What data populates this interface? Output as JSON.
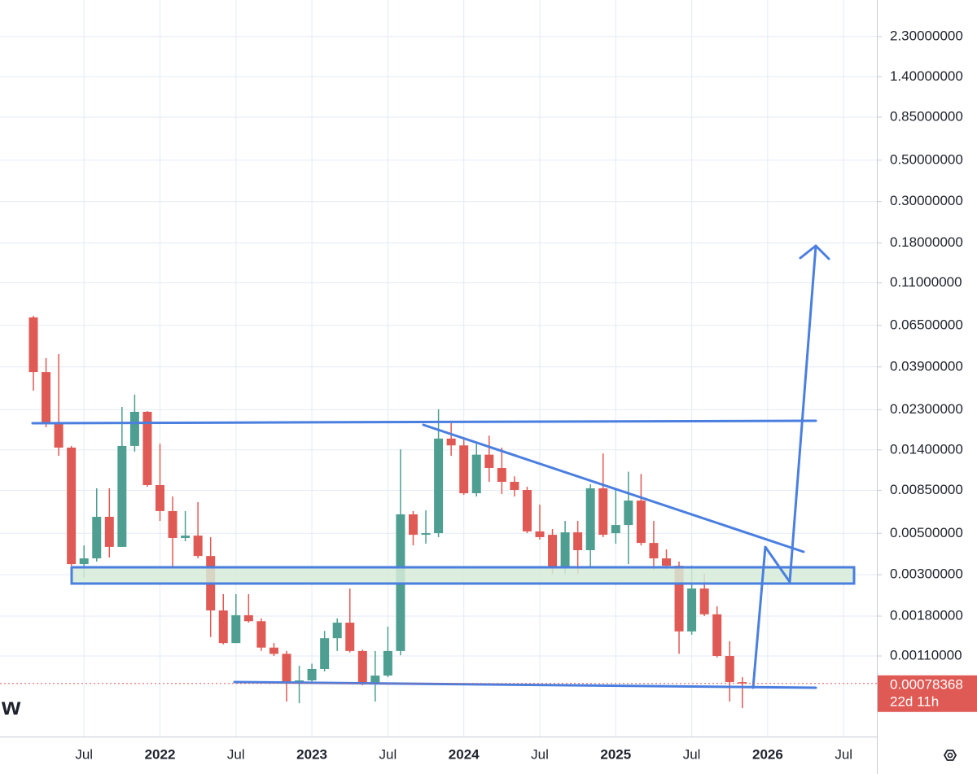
{
  "chart_data": {
    "type": "candlestick",
    "log_scale": true,
    "grid": true,
    "logo": "w",
    "up_color": "#4e9f91",
    "down_color": "#e05a55",
    "categories": [
      null,
      null,
      null,
      null,
      "Jul",
      null,
      null,
      null,
      null,
      null,
      "2022",
      null,
      null,
      null,
      null,
      null,
      "Jul",
      null,
      null,
      null,
      null,
      null,
      "2023",
      null,
      null,
      null,
      null,
      null,
      "Jul",
      null,
      null,
      null,
      null,
      null,
      "2024",
      null,
      null,
      null,
      null,
      null,
      "Jul",
      null,
      null,
      null,
      null,
      null,
      "2025",
      null,
      null,
      null,
      null,
      null,
      "Jul",
      null,
      null,
      null,
      null,
      null,
      "2026",
      null,
      null,
      null,
      null,
      null,
      "Jul"
    ],
    "open": [
      0.0718,
      0.0366,
      0.0195,
      0.0144,
      0.00342,
      0.00367,
      0.00613,
      0.00423,
      0.0147,
      0.0224,
      0.00907,
      0.00658,
      0.00472,
      0.00486,
      0.00378,
      0.00193,
      0.00129,
      0.00182,
      0.00169,
      0.00122,
      0.00113,
      0.000797,
      0.000814,
      0.000937,
      0.00137,
      0.00166,
      0.00117,
      0.000782,
      0.000864,
      0.00117,
      0.00632,
      0.00491,
      0.00501,
      0.0161,
      0.0148,
      0.0082,
      0.0132,
      0.0112,
      0.00944,
      0.00854,
      0.00512,
      0.00491,
      0.00325,
      0.00506,
      0.00406,
      0.00871,
      0.00501,
      0.00554,
      0.00749,
      0.00444,
      0.00367,
      0.00335,
      0.00149,
      0.00253,
      0.00184,
      0.0011,
      0.000797,
      null,
      null,
      null,
      null,
      null,
      null,
      null,
      null
    ],
    "high": [
      0.0733,
      0.0435,
      0.0457,
      0.0147,
      0.00431,
      0.00871,
      0.00871,
      0.0238,
      0.0277,
      0.0226,
      0.0151,
      0.00788,
      0.00658,
      0.00734,
      0.00477,
      0.00236,
      0.00236,
      0.00236,
      0.00175,
      0.00129,
      0.00117,
      0.000975,
      0.001,
      0.0015,
      0.00175,
      0.00253,
      0.00119,
      0.00117,
      0.00158,
      0.0141,
      0.00658,
      0.00664,
      0.0231,
      0.0195,
      0.0159,
      0.0151,
      0.0167,
      0.0144,
      0.0101,
      0.00889,
      0.00712,
      0.00527,
      0.00583,
      0.00583,
      0.00916,
      0.0134,
      0.00871,
      0.0107,
      0.0104,
      0.00583,
      0.0041,
      0.00353,
      0.00335,
      0.00303,
      0.00203,
      0.00132,
      0.000847,
      null,
      null,
      null,
      null,
      null,
      null,
      null,
      null
    ],
    "low": [
      0.0291,
      0.0185,
      0.013,
      0.00335,
      0.00289,
      0.00353,
      0.00371,
      0.00423,
      0.0137,
      0.00889,
      0.00583,
      0.00325,
      0.00453,
      0.00367,
      0.00139,
      0.00127,
      0.00129,
      0.00166,
      0.00117,
      0.0011,
      0.000627,
      0.000614,
      0.000782,
      0.000909,
      0.00117,
      0.00115,
      0.000766,
      0.000627,
      0.000847,
      0.00111,
      0.00431,
      0.0044,
      0.00477,
      0.013,
      0.00804,
      0.00788,
      0.00944,
      0.00812,
      0.00788,
      0.00501,
      0.00463,
      0.00303,
      0.00303,
      0.00303,
      0.00329,
      0.00477,
      0.0044,
      0.00342,
      0.00431,
      0.00319,
      0.00319,
      0.00113,
      0.00143,
      0.0018,
      0.00108,
      0.000627,
      0.000578,
      null,
      null,
      null,
      null,
      null,
      null,
      null,
      null
    ],
    "close": [
      0.0366,
      0.0195,
      0.0144,
      0.00342,
      0.00367,
      0.00613,
      0.00423,
      0.0147,
      0.0224,
      0.00907,
      0.00658,
      0.00472,
      0.00486,
      0.00378,
      0.00193,
      0.00129,
      0.00182,
      0.00169,
      0.00122,
      0.00113,
      0.000797,
      0.000814,
      0.000937,
      0.00137,
      0.00166,
      0.00117,
      0.000782,
      0.000864,
      0.00117,
      0.00632,
      0.00491,
      0.00501,
      0.0161,
      0.0148,
      0.0082,
      0.0132,
      0.0112,
      0.00944,
      0.00854,
      0.00512,
      0.00477,
      0.00325,
      0.00506,
      0.00406,
      0.00871,
      0.00491,
      0.00554,
      0.00749,
      0.00444,
      0.00367,
      0.00335,
      0.00149,
      0.00253,
      0.00184,
      0.0011,
      0.000797,
      0.00078368,
      null,
      null,
      null,
      null,
      null,
      null,
      null,
      null
    ],
    "last_price": 0.00078368,
    "countdown": "22d 11h",
    "ylim": [
      0.000407,
      3.61
    ],
    "yticks": [
      {
        "value": 2.3,
        "label": "2.30000000"
      },
      {
        "value": 1.4,
        "label": "1.40000000"
      },
      {
        "value": 0.85,
        "label": "0.85000000"
      },
      {
        "value": 0.5,
        "label": "0.50000000"
      },
      {
        "value": 0.3,
        "label": "0.30000000"
      },
      {
        "value": 0.18,
        "label": "0.18000000"
      },
      {
        "value": 0.11,
        "label": "0.11000000"
      },
      {
        "value": 0.065,
        "label": "0.06500000"
      },
      {
        "value": 0.039,
        "label": "0.03900000"
      },
      {
        "value": 0.023,
        "label": "0.02300000"
      },
      {
        "value": 0.014,
        "label": "0.01400000"
      },
      {
        "value": 0.0085,
        "label": "0.00850000"
      },
      {
        "value": 0.005,
        "label": "0.00500000"
      },
      {
        "value": 0.003,
        "label": "0.00300000"
      },
      {
        "value": 0.0018,
        "label": "0.00180000"
      },
      {
        "value": 0.0011,
        "label": "0.00110000"
      }
    ]
  }
}
